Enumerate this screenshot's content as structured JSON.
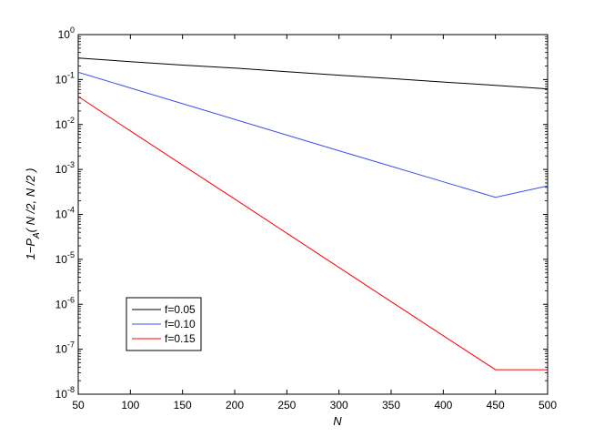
{
  "chart_data": {
    "type": "line",
    "xlabel": "N",
    "ylabel": "1−P_A( N /2, N /2 )",
    "xlim": [
      50,
      500
    ],
    "ylim": [
      1e-08,
      1
    ],
    "yscale": "log",
    "grid": false,
    "legend_position": "bottom-left",
    "x_ticks": [
      50,
      100,
      150,
      200,
      250,
      300,
      350,
      400,
      450,
      500
    ],
    "x_tick_labels": [
      "50",
      "100",
      "150",
      "200",
      "250",
      "300",
      "350",
      "400",
      "450",
      "500"
    ],
    "y_ticks": [
      1,
      0.1,
      0.01,
      0.001,
      0.0001,
      1e-05,
      1e-06,
      1e-07,
      1e-08
    ],
    "y_tick_labels": [
      {
        "base": "10",
        "exp": "0"
      },
      {
        "base": "10",
        "exp": "-1"
      },
      {
        "base": "10",
        "exp": "-2"
      },
      {
        "base": "10",
        "exp": "-3"
      },
      {
        "base": "10",
        "exp": "-4"
      },
      {
        "base": "10",
        "exp": "-5"
      },
      {
        "base": "10",
        "exp": "-6"
      },
      {
        "base": "10",
        "exp": "-7"
      },
      {
        "base": "10",
        "exp": "-8"
      }
    ],
    "x": [
      50,
      100,
      150,
      200,
      250,
      300,
      350,
      400,
      450,
      500
    ],
    "series": [
      {
        "name": "f=0.05",
        "color": "#000000",
        "values": [
          0.3,
          0.25,
          0.21,
          0.18,
          0.15,
          0.125,
          0.105,
          0.088,
          0.074,
          0.062
        ]
      },
      {
        "name": "f=0.10",
        "color": "#3c50f0",
        "values": [
          0.145,
          0.065,
          0.029,
          0.013,
          0.0058,
          0.0026,
          0.00118,
          0.00053,
          0.00024,
          0.00043
        ]
      },
      {
        "name": "f=0.15",
        "color": "#ff0000",
        "values": [
          0.042,
          0.0072,
          0.00125,
          0.00022,
          3.8e-05,
          6.6e-06,
          1.15e-06,
          2e-07,
          3.5e-08,
          3.5e-08
        ]
      }
    ]
  }
}
